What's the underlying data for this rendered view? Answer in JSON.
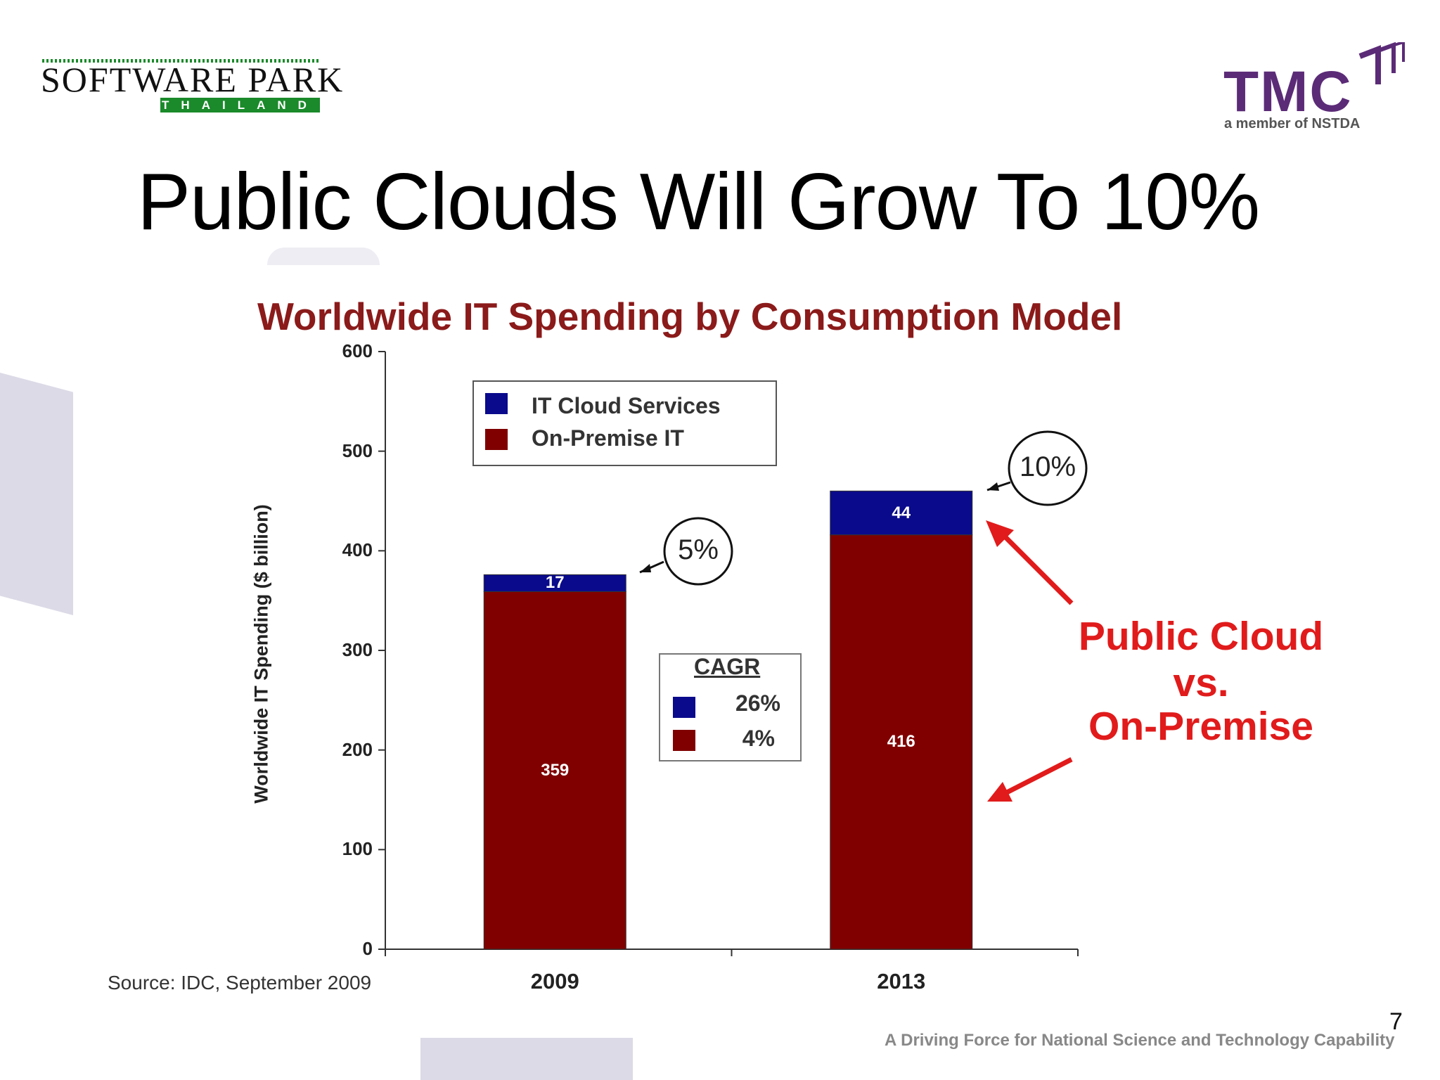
{
  "slide": {
    "title": "Public Clouds Will Grow To 10%",
    "page_number": "7",
    "footer": "A Driving Force for National Science and Technology Capability",
    "source": "Source: IDC, September 2009"
  },
  "logos": {
    "software_park": {
      "main": "SOFTWARE PARK",
      "sub": "THAILAND"
    },
    "tmc": {
      "main": "TMC",
      "sub": "a member of NSTDA"
    }
  },
  "chart_data": {
    "type": "bar",
    "stacked": true,
    "title": "Worldwide IT Spending by Consumption Model",
    "ylabel": "Worldwide IT Spending ($ billion)",
    "xlabel": "",
    "ylim": [
      0,
      600
    ],
    "yticks": [
      "0",
      "100",
      "200",
      "300",
      "400",
      "500",
      "600"
    ],
    "categories": [
      "2009",
      "2013"
    ],
    "series": [
      {
        "name": "On-Premise IT",
        "values": [
          359,
          416
        ],
        "color": "#800000"
      },
      {
        "name": "IT Cloud Services",
        "values": [
          17,
          44
        ],
        "color": "#0a0a8c"
      }
    ],
    "legend": {
      "position": "top-left inside",
      "items": [
        "IT Cloud Services",
        "On-Premise IT"
      ]
    },
    "cagr": {
      "title": "CAGR",
      "cloud": "26%",
      "on_premise": "4%"
    },
    "share_callouts": [
      "5%",
      "10%"
    ],
    "annotation": {
      "line1": "Public Cloud",
      "line2": "vs.",
      "line3": "On-Premise"
    },
    "grid": false
  }
}
